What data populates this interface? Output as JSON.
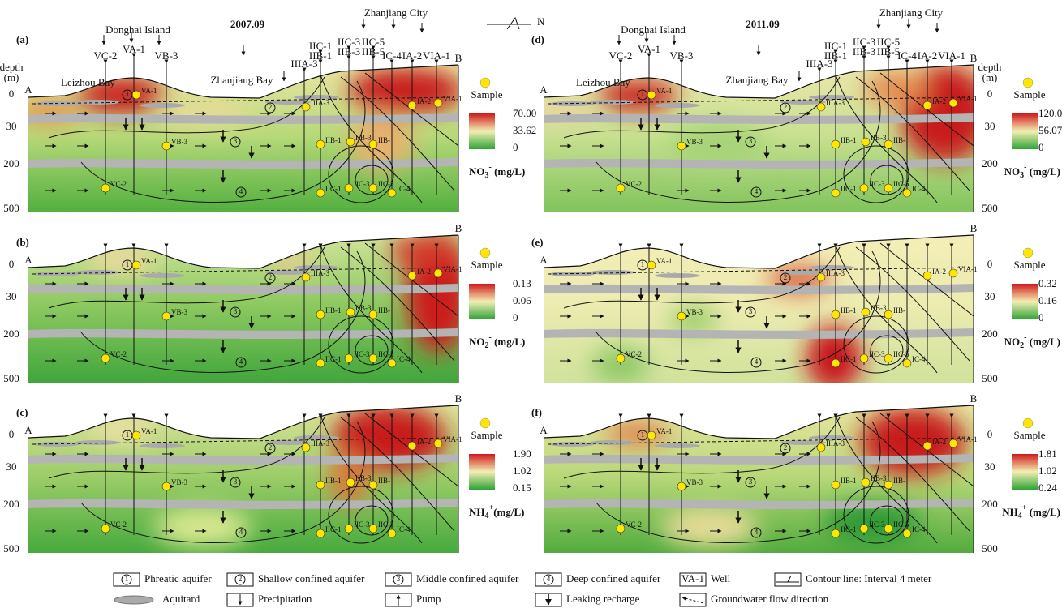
{
  "header": {
    "north": "N",
    "columns": [
      {
        "date": "2007.09"
      },
      {
        "date": "2011.09"
      }
    ]
  },
  "places": {
    "island": "Donghai Island",
    "city": "Zhanjiang City",
    "bay": "Zhanjiang Bay",
    "west_bay": "Leizhou Bay",
    "start": "A",
    "end": "B"
  },
  "depth_axis": {
    "title": "depth",
    "unit": "(m)",
    "ticks": [
      "0",
      "30",
      "200",
      "500"
    ]
  },
  "top_wells": [
    "VC-2",
    "VA-1",
    "VB-3",
    "IIIA-3",
    "IIC-1",
    "IIB-1",
    "IIC-3",
    "IIB-3",
    "IIC-5",
    "IIB-5",
    "IC-4",
    "IA-2",
    "VIA-1"
  ],
  "samples": [
    "VA-1",
    "IIIA-3",
    "IA-2",
    "VIA-1",
    "VB-3",
    "IIB-1",
    "IIB-3",
    "IIB-",
    "VC-2",
    "IIC-1",
    "IIC-3",
    "IIC-5",
    "IC-4"
  ],
  "aquifers": [
    "1",
    "2",
    "3",
    "4"
  ],
  "sample_text": "Sample",
  "panels": [
    {
      "label": "(a)",
      "scale": [
        "70.00",
        "33.62",
        "0"
      ],
      "unit": {
        "base": "NO",
        "sub": "3",
        "sup": "-",
        "suffix": " (mg/L)"
      }
    },
    {
      "label": "(b)",
      "scale": [
        "0.13",
        "0.06",
        "0"
      ],
      "unit": {
        "base": "NO",
        "sub": "2",
        "sup": "-",
        "suffix": " (mg/L)"
      }
    },
    {
      "label": "(c)",
      "scale": [
        "1.90",
        "1.02",
        "0.15"
      ],
      "unit": {
        "base": "NH",
        "sub": "4",
        "sup": "+",
        "suffix": "(mg/L)"
      }
    },
    {
      "label": "(d)",
      "scale": [
        "120.0",
        "56.07",
        "0"
      ],
      "unit": {
        "base": "NO",
        "sub": "3",
        "sup": "-",
        "suffix": " (mg/L)"
      }
    },
    {
      "label": "(e)",
      "scale": [
        "0.32",
        "0.16",
        "0"
      ],
      "unit": {
        "base": "NO",
        "sub": "2",
        "sup": "-",
        "suffix": " (mg/L)"
      }
    },
    {
      "label": "(f)",
      "scale": [
        "1.81",
        "1.02",
        "0.24"
      ],
      "unit": {
        "base": "NH",
        "sub": "4",
        "sup": "+",
        "suffix": " (mg/L)"
      }
    }
  ],
  "legend": [
    {
      "symbol": "1",
      "label": "Phreatic aquifer"
    },
    {
      "symbol": "2",
      "label": "Shallow confined aquifer"
    },
    {
      "symbol": "3",
      "label": "Middle confined aquifer"
    },
    {
      "symbol": "4",
      "label": "Deep confined aquifer"
    },
    {
      "symbol": "VA-1",
      "label": "Well"
    },
    {
      "label": "Contour line: Interval 4 meter"
    },
    {
      "label": "Aquitard"
    },
    {
      "label": "Precipitation"
    },
    {
      "label": "Pump"
    },
    {
      "label": "Leaking recharge"
    },
    {
      "label": "Groundwater flow direction"
    }
  ]
}
